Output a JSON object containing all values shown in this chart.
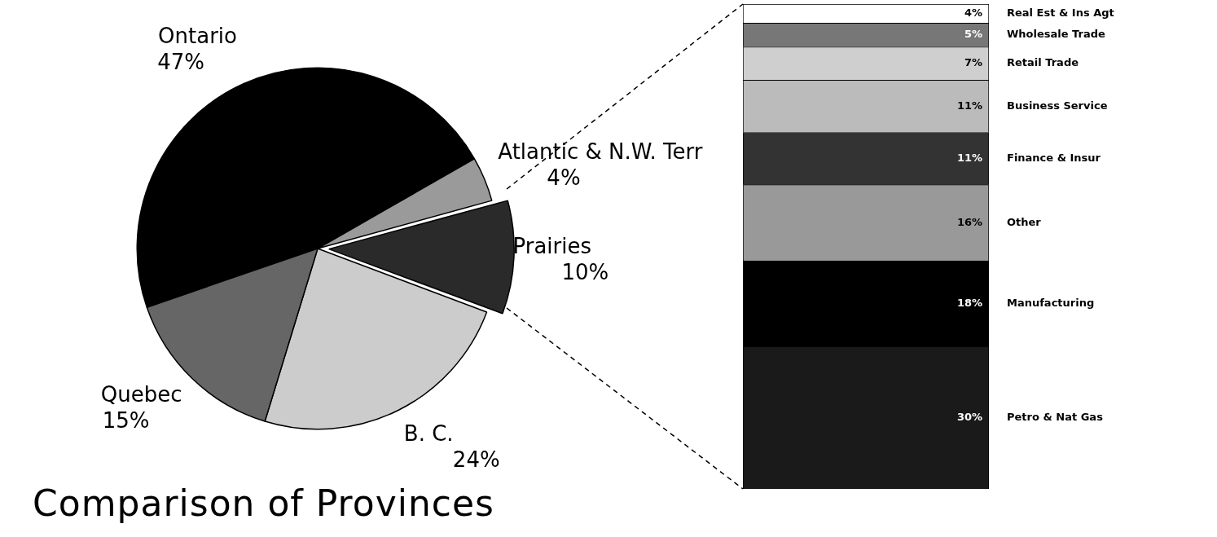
{
  "chart_data": [
    {
      "type": "pie",
      "title": "Comparison of Provinces",
      "categories": [
        "Ontario",
        "Atlantic & N.W. Terr",
        "Prairies",
        "B. C.",
        "Quebec"
      ],
      "values": [
        47,
        4,
        10,
        24,
        15
      ],
      "value_labels": [
        "47%",
        "4%",
        "10%",
        "24%",
        "15%"
      ],
      "colors": [
        "#000000",
        "#9a9a9a",
        "#2a2a2a",
        "#cccccc",
        "#666666"
      ],
      "legend": false
    },
    {
      "type": "bar",
      "stacked": true,
      "categories": [
        null
      ],
      "legend": false,
      "series": [
        {
          "name": "Petro & Nat Gas",
          "color": "#1a1a1a",
          "values": [
            30
          ],
          "value_labels": [
            "30%"
          ]
        },
        {
          "name": "Manufacturing",
          "color": "#000000",
          "values": [
            18
          ],
          "value_labels": [
            "18%"
          ]
        },
        {
          "name": "Other",
          "color": "#999999",
          "values": [
            16
          ],
          "value_labels": [
            "16%"
          ]
        },
        {
          "name": "Finance & Insur",
          "color": "#333333",
          "values": [
            11
          ],
          "value_labels": [
            "11%"
          ]
        },
        {
          "name": "Business Service",
          "color": "#bbbbbb",
          "values": [
            11
          ],
          "value_labels": [
            "11%"
          ]
        },
        {
          "name": "Retail Trade",
          "color": "#cfcfcf",
          "values": [
            7
          ],
          "value_labels": [
            "7%"
          ]
        },
        {
          "name": "Wholesale Trade",
          "color": "#777777",
          "values": [
            5
          ],
          "value_labels": [
            "5%"
          ]
        },
        {
          "name": "Real Est & Ins Agt",
          "color": "#ffffff",
          "values": [
            4
          ],
          "value_labels": [
            "4%"
          ]
        }
      ]
    }
  ]
}
